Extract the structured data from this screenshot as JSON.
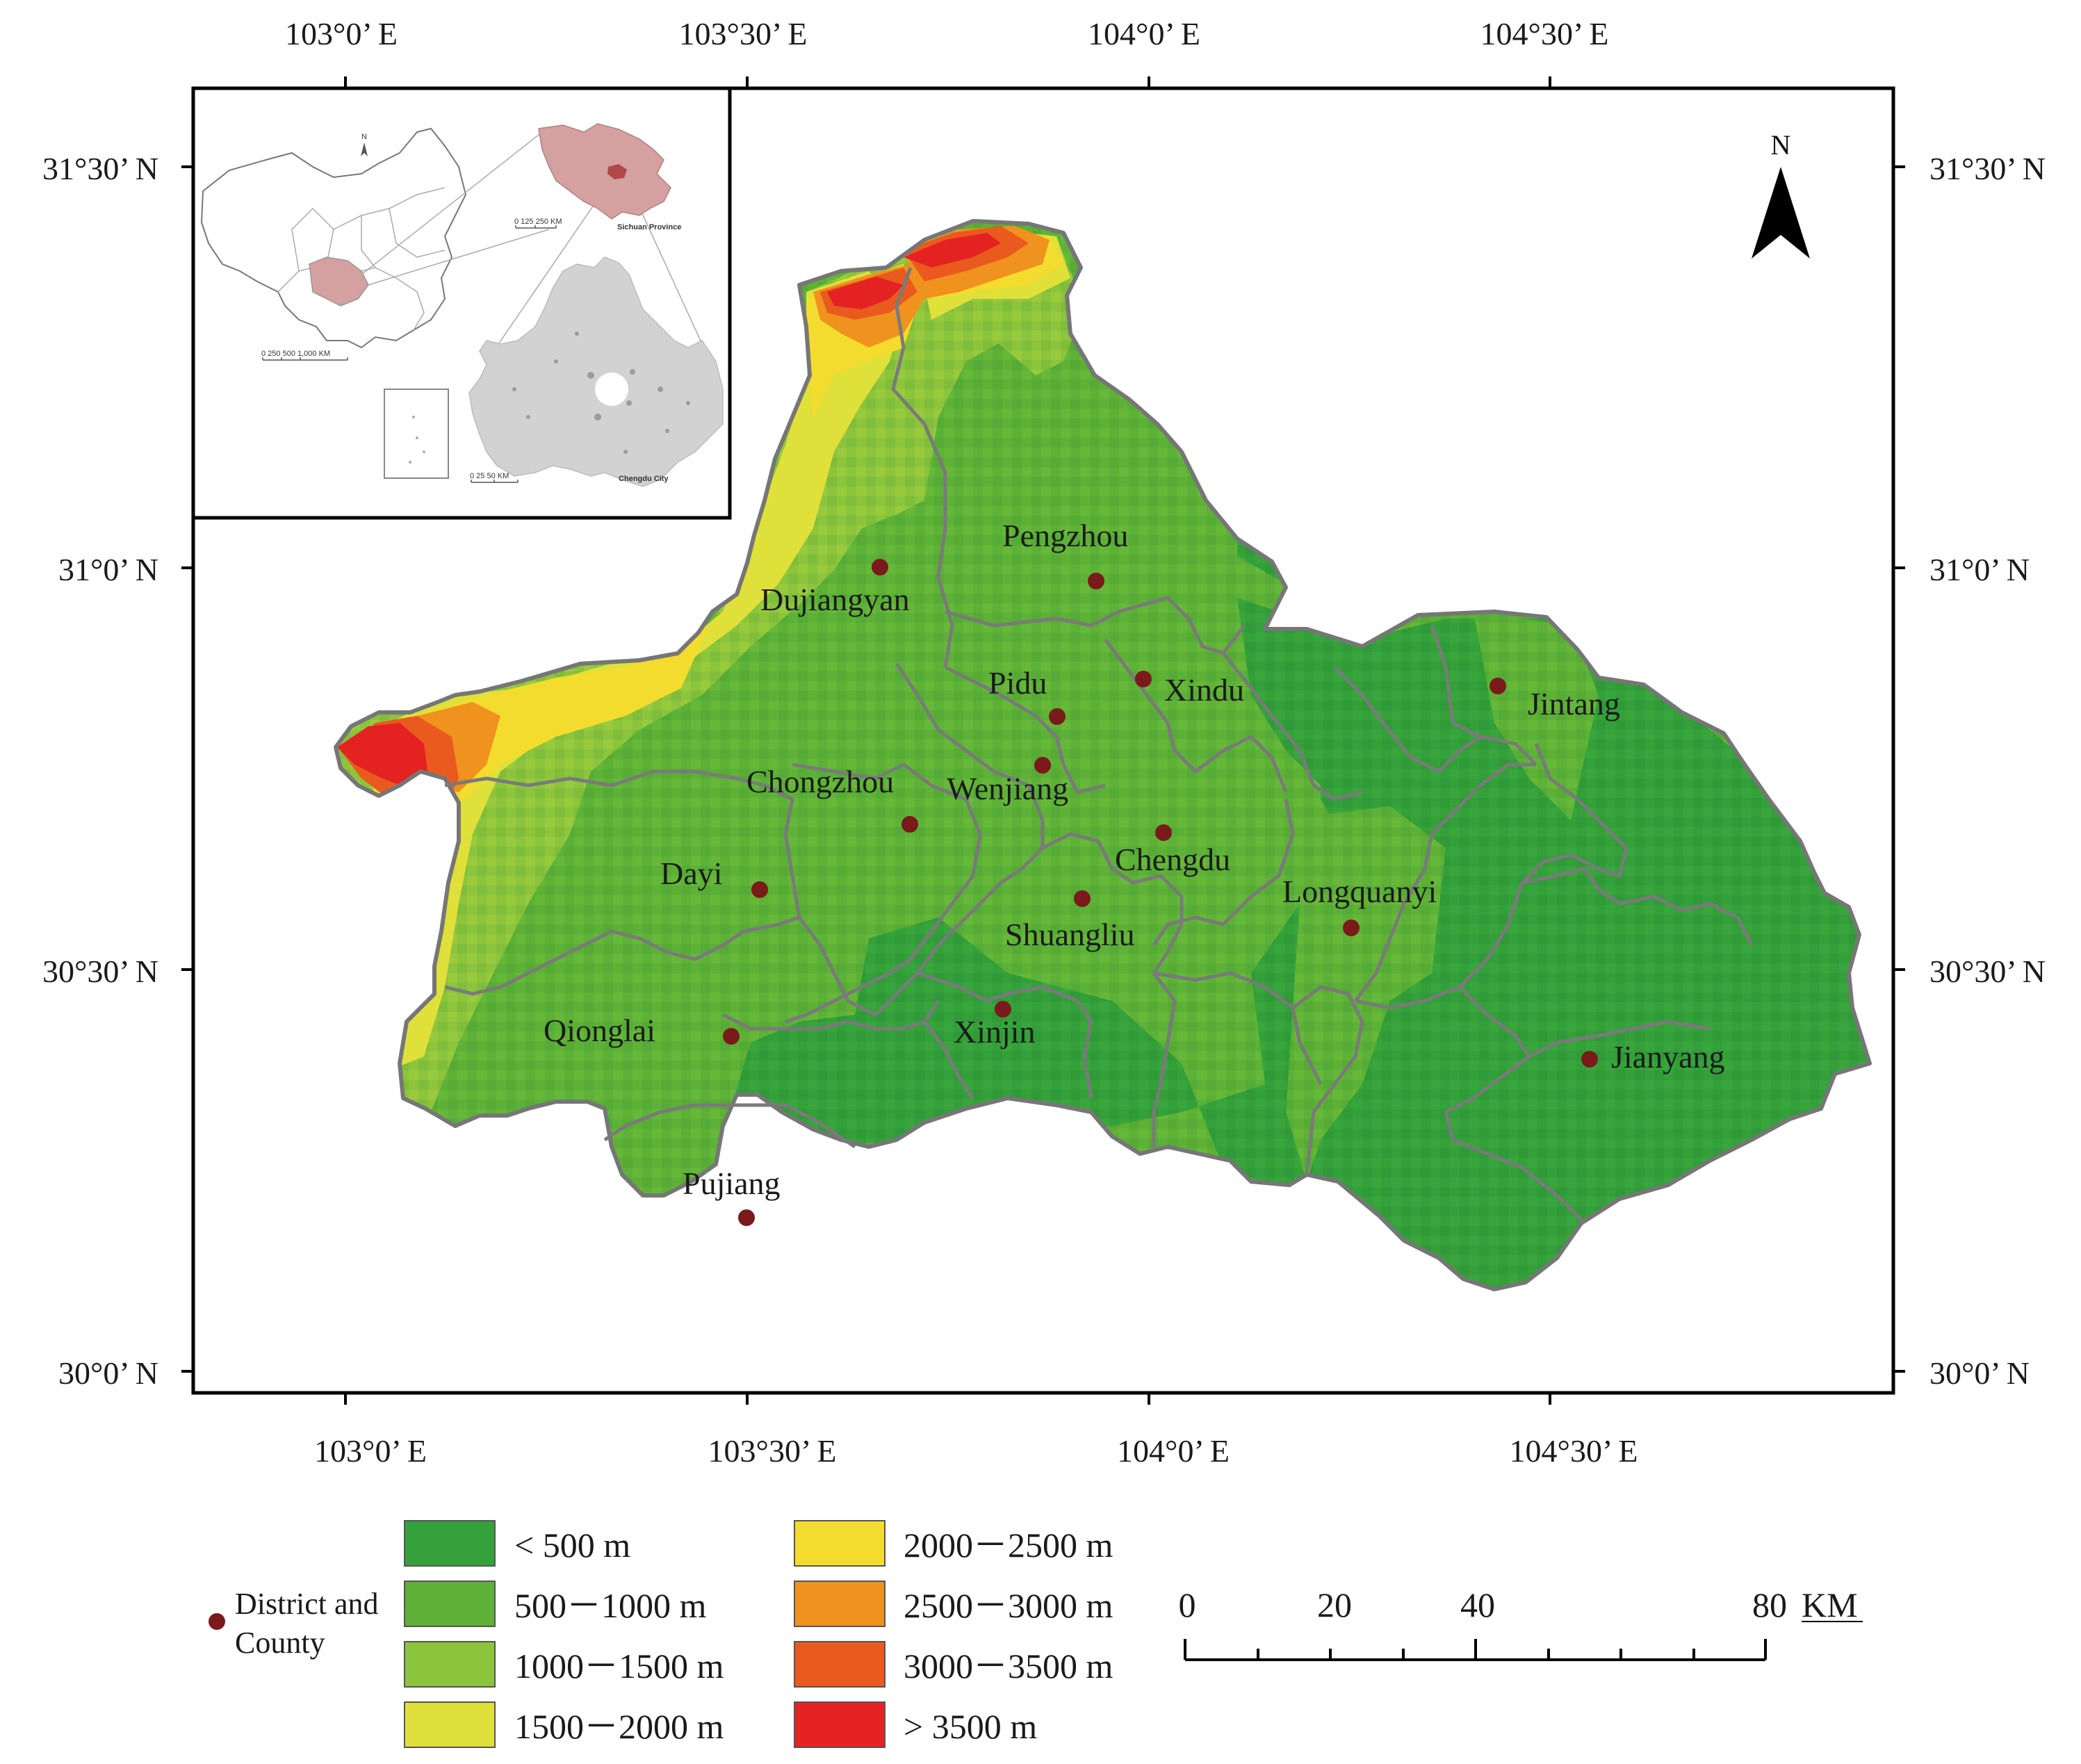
{
  "axes": {
    "lon_labels": [
      "103°0’ E",
      "103°30’ E",
      "104°0’ E",
      "104°30’ E"
    ],
    "lat_labels": [
      "31°30’ N",
      "31°0’ N",
      "30°30’ N",
      "30°0’ N"
    ]
  },
  "north_arrow": {
    "label": "N",
    "icon": "north-arrow-icon"
  },
  "inset": {
    "china_scale": "0  250 500       1,000 KM",
    "sichuan_scale": "0   125   250 KM",
    "sichuan_label": "Sichuan Province",
    "chengdu_scale": "0     25     50 KM",
    "chengdu_label": "Chengdu City",
    "north_label": "N",
    "colors": {
      "sichuan": "#d4a0a0",
      "chengdu_in_sichuan": "#b04848",
      "chengdu_fill": "#d2d2d2"
    }
  },
  "cities": [
    {
      "name": "Pengzhou"
    },
    {
      "name": "Dujiangyan"
    },
    {
      "name": "Pidu"
    },
    {
      "name": "Xindu"
    },
    {
      "name": "Jintang"
    },
    {
      "name": "Chongzhou"
    },
    {
      "name": "Wenjiang"
    },
    {
      "name": "Chengdu"
    },
    {
      "name": "Dayi"
    },
    {
      "name": "Longquanyi"
    },
    {
      "name": "Shuangliu"
    },
    {
      "name": "Qionglai"
    },
    {
      "name": "Xinjin"
    },
    {
      "name": "Jianyang"
    },
    {
      "name": "Pujiang"
    }
  ],
  "legend": {
    "point_label_line1": "District and",
    "point_label_line2": "County",
    "point_color": "#7a1a1a",
    "classes": [
      {
        "label": "< 500 m",
        "color": "#35a13a"
      },
      {
        "label": "500－1000 m",
        "color": "#5db136"
      },
      {
        "label": "1000－1500 m",
        "color": "#8cc43c"
      },
      {
        "label": "1500－2000 m",
        "color": "#dfe03a"
      },
      {
        "label": "2000－2500 m",
        "color": "#f3dc2e"
      },
      {
        "label": "2500－3000 m",
        "color": "#f0921e"
      },
      {
        "label": "3000－3500 m",
        "color": "#ea5a1e"
      },
      {
        "label": "> 3500 m",
        "color": "#e42222"
      }
    ]
  },
  "scale_bar": {
    "labels": [
      "0",
      "20",
      "40",
      "80"
    ],
    "unit": "KM"
  },
  "colors": {
    "boundary": "#7a7a7a",
    "frame": "#000000"
  }
}
